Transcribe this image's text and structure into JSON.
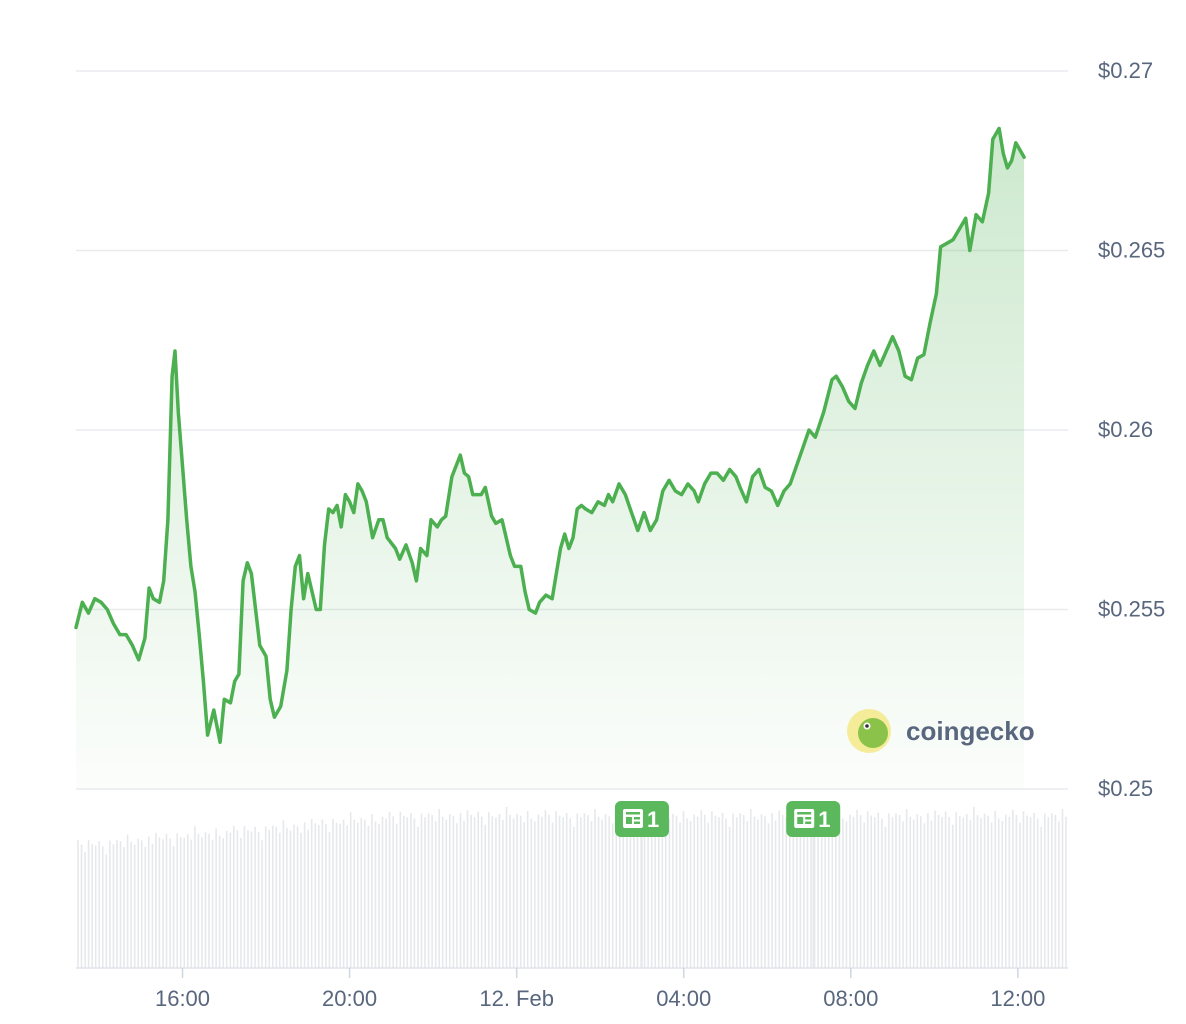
{
  "chart_data": {
    "type": "area",
    "y_ticks": [
      "$0.27",
      "$0.265",
      "$0.26",
      "$0.255",
      "$0.25"
    ],
    "y_tick_values": [
      0.27,
      0.265,
      0.26,
      0.255,
      0.25
    ],
    "ylim": [
      0.25,
      0.27
    ],
    "x_ticks": [
      "16:00",
      "20:00",
      "12. Feb",
      "04:00",
      "08:00",
      "12:00"
    ],
    "x_tick_hours": [
      16,
      20,
      24,
      28,
      32,
      36
    ],
    "xlim_hours": [
      13.45,
      37.2
    ],
    "grid": true,
    "line_color": "#4caf50",
    "fill_color": "#4caf50",
    "series": [
      {
        "values": [
          [
            13.45,
            0.2545
          ],
          [
            13.6,
            0.2552
          ],
          [
            13.75,
            0.2549
          ],
          [
            13.9,
            0.2553
          ],
          [
            14.05,
            0.2552
          ],
          [
            14.2,
            0.255
          ],
          [
            14.35,
            0.2546
          ],
          [
            14.5,
            0.2543
          ],
          [
            14.65,
            0.2543
          ],
          [
            14.8,
            0.254
          ],
          [
            14.95,
            0.2536
          ],
          [
            15.1,
            0.2542
          ],
          [
            15.2,
            0.2556
          ],
          [
            15.3,
            0.2553
          ],
          [
            15.45,
            0.2552
          ],
          [
            15.55,
            0.2558
          ],
          [
            15.65,
            0.2575
          ],
          [
            15.75,
            0.2615
          ],
          [
            15.82,
            0.2622
          ],
          [
            15.9,
            0.2605
          ],
          [
            16.0,
            0.259
          ],
          [
            16.1,
            0.2575
          ],
          [
            16.2,
            0.2562
          ],
          [
            16.3,
            0.2555
          ],
          [
            16.4,
            0.2543
          ],
          [
            16.5,
            0.253
          ],
          [
            16.6,
            0.2515
          ],
          [
            16.75,
            0.2522
          ],
          [
            16.9,
            0.2513
          ],
          [
            17.0,
            0.2525
          ],
          [
            17.15,
            0.2524
          ],
          [
            17.25,
            0.253
          ],
          [
            17.35,
            0.2532
          ],
          [
            17.45,
            0.2558
          ],
          [
            17.55,
            0.2563
          ],
          [
            17.65,
            0.256
          ],
          [
            17.75,
            0.255
          ],
          [
            17.85,
            0.254
          ],
          [
            18.0,
            0.2537
          ],
          [
            18.1,
            0.2525
          ],
          [
            18.2,
            0.252
          ],
          [
            18.35,
            0.2523
          ],
          [
            18.5,
            0.2533
          ],
          [
            18.6,
            0.255
          ],
          [
            18.7,
            0.2562
          ],
          [
            18.8,
            0.2565
          ],
          [
            18.9,
            0.2553
          ],
          [
            19.0,
            0.256
          ],
          [
            19.1,
            0.2555
          ],
          [
            19.2,
            0.255
          ],
          [
            19.3,
            0.255
          ],
          [
            19.4,
            0.2568
          ],
          [
            19.5,
            0.2578
          ],
          [
            19.6,
            0.2577
          ],
          [
            19.7,
            0.2579
          ],
          [
            19.8,
            0.2573
          ],
          [
            19.9,
            0.2582
          ],
          [
            20.0,
            0.258
          ],
          [
            20.1,
            0.2577
          ],
          [
            20.2,
            0.2585
          ],
          [
            20.3,
            0.2583
          ],
          [
            20.4,
            0.258
          ],
          [
            20.55,
            0.257
          ],
          [
            20.7,
            0.2575
          ],
          [
            20.8,
            0.2575
          ],
          [
            20.9,
            0.257
          ],
          [
            21.1,
            0.2567
          ],
          [
            21.2,
            0.2564
          ],
          [
            21.35,
            0.2568
          ],
          [
            21.5,
            0.2563
          ],
          [
            21.6,
            0.2558
          ],
          [
            21.7,
            0.2567
          ],
          [
            21.85,
            0.2565
          ],
          [
            21.95,
            0.2575
          ],
          [
            22.1,
            0.2573
          ],
          [
            22.2,
            0.2575
          ],
          [
            22.3,
            0.2576
          ],
          [
            22.45,
            0.2587
          ],
          [
            22.55,
            0.259
          ],
          [
            22.65,
            0.2593
          ],
          [
            22.75,
            0.2588
          ],
          [
            22.85,
            0.2587
          ],
          [
            22.95,
            0.2582
          ],
          [
            23.15,
            0.2582
          ],
          [
            23.25,
            0.2584
          ],
          [
            23.4,
            0.2576
          ],
          [
            23.5,
            0.2574
          ],
          [
            23.65,
            0.2575
          ],
          [
            23.75,
            0.257
          ],
          [
            23.85,
            0.2565
          ],
          [
            23.95,
            0.2562
          ],
          [
            24.1,
            0.2562
          ],
          [
            24.2,
            0.2555
          ],
          [
            24.3,
            0.255
          ],
          [
            24.45,
            0.2549
          ],
          [
            24.55,
            0.2552
          ],
          [
            24.7,
            0.2554
          ],
          [
            24.85,
            0.2553
          ],
          [
            24.95,
            0.256
          ],
          [
            25.05,
            0.2567
          ],
          [
            25.15,
            0.2571
          ],
          [
            25.25,
            0.2567
          ],
          [
            25.35,
            0.257
          ],
          [
            25.45,
            0.2578
          ],
          [
            25.55,
            0.2579
          ],
          [
            25.65,
            0.2578
          ],
          [
            25.8,
            0.2577
          ],
          [
            25.95,
            0.258
          ],
          [
            26.1,
            0.2579
          ],
          [
            26.2,
            0.2582
          ],
          [
            26.3,
            0.258
          ],
          [
            26.45,
            0.2585
          ],
          [
            26.6,
            0.2582
          ],
          [
            26.75,
            0.2577
          ],
          [
            26.9,
            0.2572
          ],
          [
            27.05,
            0.2577
          ],
          [
            27.2,
            0.2572
          ],
          [
            27.35,
            0.2575
          ],
          [
            27.5,
            0.2583
          ],
          [
            27.65,
            0.2586
          ],
          [
            27.8,
            0.2583
          ],
          [
            27.95,
            0.2582
          ],
          [
            28.1,
            0.2585
          ],
          [
            28.25,
            0.2583
          ],
          [
            28.35,
            0.258
          ],
          [
            28.5,
            0.2585
          ],
          [
            28.65,
            0.2588
          ],
          [
            28.8,
            0.2588
          ],
          [
            28.95,
            0.2586
          ],
          [
            29.1,
            0.2589
          ],
          [
            29.25,
            0.2587
          ],
          [
            29.35,
            0.2584
          ],
          [
            29.5,
            0.258
          ],
          [
            29.65,
            0.2587
          ],
          [
            29.8,
            0.2589
          ],
          [
            29.95,
            0.2584
          ],
          [
            30.1,
            0.2583
          ],
          [
            30.25,
            0.2579
          ],
          [
            30.4,
            0.2583
          ],
          [
            30.55,
            0.2585
          ],
          [
            30.7,
            0.259
          ],
          [
            30.85,
            0.2595
          ],
          [
            31.0,
            0.26
          ],
          [
            31.15,
            0.2598
          ],
          [
            31.35,
            0.2605
          ],
          [
            31.55,
            0.2614
          ],
          [
            31.65,
            0.2615
          ],
          [
            31.8,
            0.2612
          ],
          [
            31.95,
            0.2608
          ],
          [
            32.1,
            0.2606
          ],
          [
            32.25,
            0.2613
          ],
          [
            32.4,
            0.2618
          ],
          [
            32.55,
            0.2622
          ],
          [
            32.7,
            0.2618
          ],
          [
            32.85,
            0.2622
          ],
          [
            33.0,
            0.2626
          ],
          [
            33.15,
            0.2622
          ],
          [
            33.3,
            0.2615
          ],
          [
            33.45,
            0.2614
          ],
          [
            33.6,
            0.262
          ],
          [
            33.75,
            0.2621
          ],
          [
            33.9,
            0.263
          ],
          [
            34.05,
            0.2638
          ],
          [
            34.15,
            0.2651
          ],
          [
            34.3,
            0.2652
          ],
          [
            34.45,
            0.2653
          ],
          [
            34.6,
            0.2656
          ],
          [
            34.75,
            0.2659
          ],
          [
            34.85,
            0.265
          ],
          [
            35.0,
            0.266
          ],
          [
            35.15,
            0.2658
          ],
          [
            35.3,
            0.2666
          ],
          [
            35.4,
            0.2681
          ],
          [
            35.55,
            0.2684
          ],
          [
            35.65,
            0.2677
          ],
          [
            35.75,
            0.2673
          ],
          [
            35.85,
            0.2675
          ],
          [
            35.95,
            0.268
          ],
          [
            36.05,
            0.2678
          ],
          [
            36.15,
            0.2676
          ]
        ]
      }
    ],
    "volume_bar_count": 280
  },
  "news_markers": [
    {
      "label": "1",
      "icon": "newspaper-icon",
      "x_hour": 27.0
    },
    {
      "label": "1",
      "icon": "newspaper-icon",
      "x_hour": 31.1
    }
  ],
  "brand": {
    "text": "coingecko",
    "icon": "gecko-logo"
  }
}
